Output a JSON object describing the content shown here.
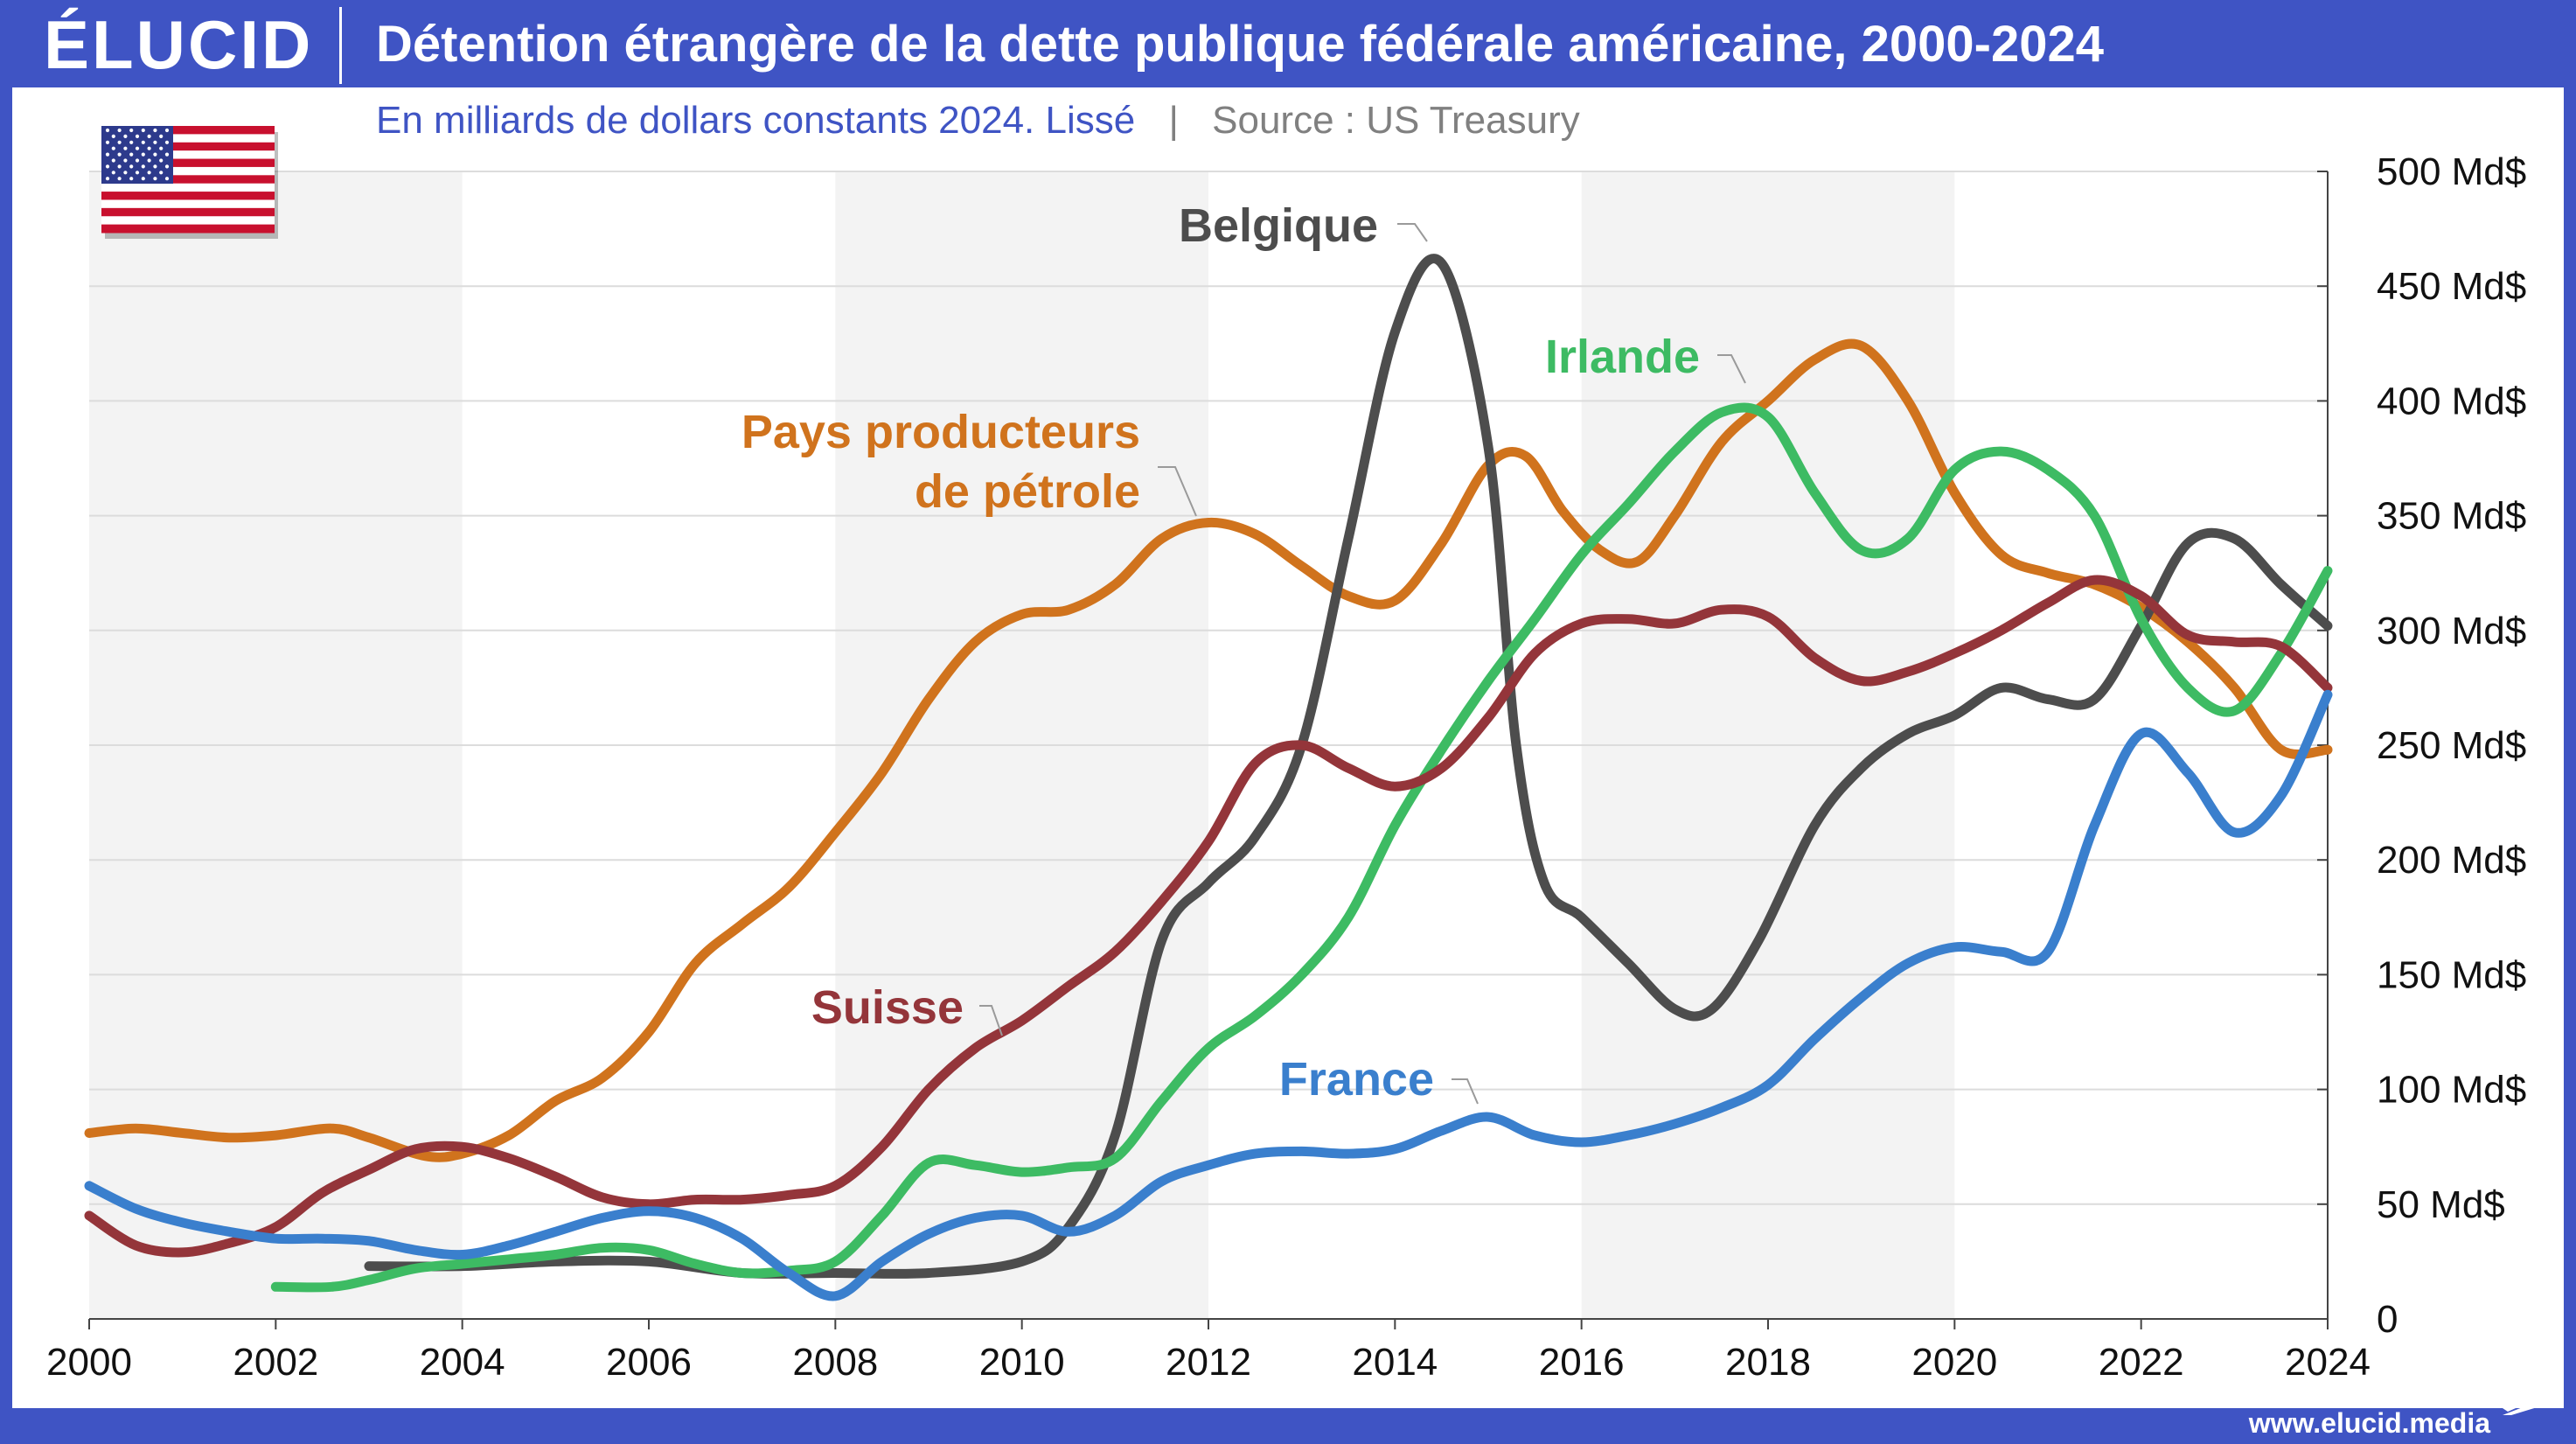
{
  "header": {
    "logo": "ÉLUCID",
    "title": "Détention étrangère de la dette publique fédérale américaine, 2000-2024"
  },
  "subtitle": {
    "main": "En milliards de dollars constants 2024. Lissé",
    "separator": "|",
    "source": "Source : US Treasury"
  },
  "footer": {
    "url": "www.elucid.media"
  },
  "flag": {
    "icon": "us-flag-icon"
  },
  "colors": {
    "frame": "#3f54c4",
    "belgique": "#4d4d4d",
    "irlande": "#3dbb63",
    "petrole": "#d0731d",
    "suisse": "#94353a",
    "france": "#3a7fcd",
    "subtitle": "#3f54c4",
    "source": "#808080"
  },
  "chart_data": {
    "type": "line",
    "title": "Détention étrangère de la dette publique fédérale américaine, 2000-2024",
    "subtitle": "En milliards de dollars constants 2024. Lissé",
    "xlabel": "",
    "ylabel": "",
    "xlim": [
      2000,
      2024
    ],
    "ylim": [
      0,
      500
    ],
    "x_ticks": [
      "2000",
      "2002",
      "2004",
      "2006",
      "2008",
      "2010",
      "2012",
      "2014",
      "2016",
      "2018",
      "2020",
      "2022",
      "2024"
    ],
    "y_ticks": [
      "0",
      "50 Md$",
      "100 Md$",
      "150 Md$",
      "200 Md$",
      "250 Md$",
      "300 Md$",
      "350 Md$",
      "400 Md$",
      "450 Md$",
      "500 Md$"
    ],
    "y_axis_side": "right",
    "grid": "horizontal",
    "series": [
      {
        "name": "Pays producteurs de pétrole",
        "label_lines": [
          "Pays producteurs",
          "de pétrole"
        ],
        "color": "#d0731d",
        "points": [
          [
            2000,
            81
          ],
          [
            2000.5,
            83
          ],
          [
            2001,
            81
          ],
          [
            2001.5,
            79
          ],
          [
            2002,
            80
          ],
          [
            2002.6,
            83
          ],
          [
            2003,
            79
          ],
          [
            2003.6,
            71
          ],
          [
            2004,
            72
          ],
          [
            2004.5,
            80
          ],
          [
            2005,
            95
          ],
          [
            2005.5,
            105
          ],
          [
            2006,
            125
          ],
          [
            2006.5,
            155
          ],
          [
            2007,
            172
          ],
          [
            2007.5,
            188
          ],
          [
            2008,
            212
          ],
          [
            2008.5,
            238
          ],
          [
            2009,
            270
          ],
          [
            2009.5,
            295
          ],
          [
            2010,
            307
          ],
          [
            2010.5,
            309
          ],
          [
            2011,
            320
          ],
          [
            2011.5,
            340
          ],
          [
            2012,
            347
          ],
          [
            2012.5,
            342
          ],
          [
            2013,
            328
          ],
          [
            2013.5,
            315
          ],
          [
            2014,
            313
          ],
          [
            2014.5,
            338
          ],
          [
            2015,
            372
          ],
          [
            2015.4,
            376
          ],
          [
            2015.8,
            352
          ],
          [
            2016.2,
            335
          ],
          [
            2016.6,
            330
          ],
          [
            2017,
            350
          ],
          [
            2017.5,
            382
          ],
          [
            2018,
            400
          ],
          [
            2018.5,
            418
          ],
          [
            2019,
            424
          ],
          [
            2019.5,
            400
          ],
          [
            2020,
            360
          ],
          [
            2020.5,
            333
          ],
          [
            2021,
            325
          ],
          [
            2021.5,
            320
          ],
          [
            2022,
            310
          ],
          [
            2022.5,
            295
          ],
          [
            2023,
            275
          ],
          [
            2023.5,
            248
          ],
          [
            2024,
            248
          ]
        ]
      },
      {
        "name": "Belgique",
        "label_lines": [
          "Belgique"
        ],
        "color": "#4d4d4d",
        "points": [
          [
            2003,
            23
          ],
          [
            2004,
            23
          ],
          [
            2005,
            25
          ],
          [
            2006,
            25
          ],
          [
            2007,
            20
          ],
          [
            2008,
            20
          ],
          [
            2009,
            20
          ],
          [
            2010,
            25
          ],
          [
            2010.5,
            40
          ],
          [
            2011,
            80
          ],
          [
            2011.5,
            165
          ],
          [
            2012,
            190
          ],
          [
            2012.5,
            210
          ],
          [
            2013,
            250
          ],
          [
            2013.5,
            340
          ],
          [
            2014,
            430
          ],
          [
            2014.5,
            460
          ],
          [
            2015,
            380
          ],
          [
            2015.3,
            250
          ],
          [
            2015.6,
            190
          ],
          [
            2016,
            175
          ],
          [
            2016.5,
            155
          ],
          [
            2017,
            135
          ],
          [
            2017.4,
            135
          ],
          [
            2017.9,
            165
          ],
          [
            2018.5,
            215
          ],
          [
            2019,
            240
          ],
          [
            2019.5,
            255
          ],
          [
            2020,
            263
          ],
          [
            2020.5,
            275
          ],
          [
            2021,
            270
          ],
          [
            2021.5,
            270
          ],
          [
            2022,
            302
          ],
          [
            2022.5,
            338
          ],
          [
            2023,
            340
          ],
          [
            2023.5,
            320
          ],
          [
            2024,
            302
          ]
        ]
      },
      {
        "name": "Irlande",
        "label_lines": [
          "Irlande"
        ],
        "color": "#3dbb63",
        "points": [
          [
            2002,
            14
          ],
          [
            2002.6,
            14
          ],
          [
            2003,
            17
          ],
          [
            2003.5,
            22
          ],
          [
            2004,
            24
          ],
          [
            2004.5,
            26
          ],
          [
            2005,
            28
          ],
          [
            2005.5,
            31
          ],
          [
            2006,
            30
          ],
          [
            2006.5,
            24
          ],
          [
            2007,
            20
          ],
          [
            2007.5,
            21
          ],
          [
            2008,
            25
          ],
          [
            2008.5,
            45
          ],
          [
            2009,
            68
          ],
          [
            2009.5,
            67
          ],
          [
            2010,
            64
          ],
          [
            2010.5,
            66
          ],
          [
            2011,
            70
          ],
          [
            2011.5,
            95
          ],
          [
            2012,
            118
          ],
          [
            2012.5,
            132
          ],
          [
            2013,
            150
          ],
          [
            2013.5,
            175
          ],
          [
            2014,
            215
          ],
          [
            2014.5,
            248
          ],
          [
            2015,
            278
          ],
          [
            2015.5,
            305
          ],
          [
            2016,
            333
          ],
          [
            2016.5,
            355
          ],
          [
            2017,
            378
          ],
          [
            2017.5,
            395
          ],
          [
            2018,
            393
          ],
          [
            2018.5,
            360
          ],
          [
            2019,
            335
          ],
          [
            2019.5,
            340
          ],
          [
            2020,
            370
          ],
          [
            2020.5,
            378
          ],
          [
            2021,
            370
          ],
          [
            2021.5,
            350
          ],
          [
            2022,
            305
          ],
          [
            2022.5,
            275
          ],
          [
            2023,
            265
          ],
          [
            2023.5,
            290
          ],
          [
            2024,
            326
          ]
        ]
      },
      {
        "name": "Suisse",
        "label_lines": [
          "Suisse"
        ],
        "color": "#94353a",
        "points": [
          [
            2000,
            45
          ],
          [
            2000.5,
            32
          ],
          [
            2001,
            29
          ],
          [
            2001.5,
            33
          ],
          [
            2002,
            40
          ],
          [
            2002.5,
            55
          ],
          [
            2003,
            65
          ],
          [
            2003.5,
            74
          ],
          [
            2004,
            75
          ],
          [
            2004.5,
            70
          ],
          [
            2005,
            62
          ],
          [
            2005.5,
            53
          ],
          [
            2006,
            50
          ],
          [
            2006.5,
            52
          ],
          [
            2007,
            52
          ],
          [
            2007.5,
            54
          ],
          [
            2008,
            58
          ],
          [
            2008.5,
            75
          ],
          [
            2009,
            100
          ],
          [
            2009.5,
            118
          ],
          [
            2010,
            130
          ],
          [
            2010.5,
            145
          ],
          [
            2011,
            160
          ],
          [
            2011.5,
            182
          ],
          [
            2012,
            208
          ],
          [
            2012.5,
            242
          ],
          [
            2013,
            250
          ],
          [
            2013.5,
            240
          ],
          [
            2014,
            232
          ],
          [
            2014.5,
            240
          ],
          [
            2015,
            262
          ],
          [
            2015.5,
            290
          ],
          [
            2016,
            303
          ],
          [
            2016.5,
            305
          ],
          [
            2017,
            303
          ],
          [
            2017.5,
            309
          ],
          [
            2018,
            306
          ],
          [
            2018.5,
            288
          ],
          [
            2019,
            278
          ],
          [
            2019.5,
            282
          ],
          [
            2020,
            290
          ],
          [
            2020.5,
            300
          ],
          [
            2021,
            312
          ],
          [
            2021.5,
            322
          ],
          [
            2022,
            315
          ],
          [
            2022.5,
            298
          ],
          [
            2023,
            295
          ],
          [
            2023.5,
            293
          ],
          [
            2024,
            275
          ]
        ]
      },
      {
        "name": "France",
        "label_lines": [
          "France"
        ],
        "color": "#3a7fcd",
        "points": [
          [
            2000,
            58
          ],
          [
            2000.5,
            48
          ],
          [
            2001,
            42
          ],
          [
            2001.5,
            38
          ],
          [
            2002,
            35
          ],
          [
            2002.5,
            35
          ],
          [
            2003,
            34
          ],
          [
            2003.5,
            30
          ],
          [
            2004,
            28
          ],
          [
            2004.5,
            32
          ],
          [
            2005,
            38
          ],
          [
            2005.5,
            44
          ],
          [
            2006,
            47
          ],
          [
            2006.5,
            44
          ],
          [
            2007,
            35
          ],
          [
            2007.5,
            20
          ],
          [
            2008,
            10
          ],
          [
            2008.5,
            25
          ],
          [
            2009,
            37
          ],
          [
            2009.5,
            44
          ],
          [
            2010,
            45
          ],
          [
            2010.5,
            38
          ],
          [
            2011,
            45
          ],
          [
            2011.5,
            60
          ],
          [
            2012,
            67
          ],
          [
            2012.5,
            72
          ],
          [
            2013,
            73
          ],
          [
            2013.5,
            72
          ],
          [
            2014,
            74
          ],
          [
            2014.5,
            82
          ],
          [
            2015,
            88
          ],
          [
            2015.5,
            80
          ],
          [
            2016,
            77
          ],
          [
            2016.5,
            80
          ],
          [
            2017,
            85
          ],
          [
            2017.5,
            92
          ],
          [
            2018,
            102
          ],
          [
            2018.5,
            122
          ],
          [
            2019,
            140
          ],
          [
            2019.5,
            155
          ],
          [
            2020,
            162
          ],
          [
            2020.5,
            160
          ],
          [
            2021,
            160
          ],
          [
            2021.5,
            215
          ],
          [
            2022,
            255
          ],
          [
            2022.5,
            238
          ],
          [
            2023,
            212
          ],
          [
            2023.5,
            228
          ],
          [
            2024,
            272
          ]
        ]
      }
    ]
  }
}
